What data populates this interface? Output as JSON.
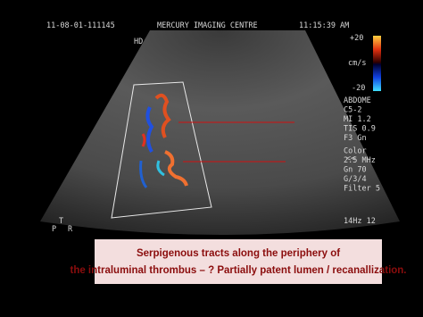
{
  "header": {
    "study_id": "11-08-01-111145",
    "center": "MERCURY IMAGING CENTRE",
    "time": "11:15:39 AM"
  },
  "overlay": {
    "mode": "HD",
    "scale_top": "+20",
    "scale_unit": "cm/s",
    "scale_bottom": "-20",
    "settings": [
      "ABDOME",
      "C5-2",
      "MI 1.2",
      "TIS 0.9",
      "F3  Gn",
      "Color",
      "2.5 MHz",
      "Gn 70",
      "G/3/4",
      "Filter 5"
    ],
    "frame_rate": "14Hz  12",
    "marker": "<<",
    "orientation_t": "T",
    "orientation_p": "P",
    "orientation_r": "R"
  },
  "caption": {
    "line1": "Serpigenous  tracts  along the periphery of",
    "line2": "the intraluminal thrombus –  ? Partially patent lumen / recanallization."
  }
}
